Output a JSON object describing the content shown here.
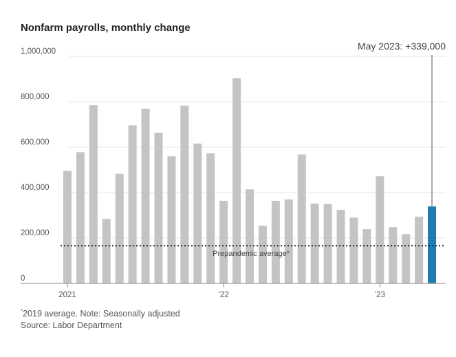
{
  "chart_data": {
    "type": "bar",
    "title": "Nonfarm payrolls, monthly change",
    "ylim": [
      0,
      1000000
    ],
    "yticks": [
      {
        "value": 0,
        "label": "0"
      },
      {
        "value": 200000,
        "label": "200,000"
      },
      {
        "value": 400000,
        "label": "400,000"
      },
      {
        "value": 600000,
        "label": "600,000"
      },
      {
        "value": 800000,
        "label": "800,000"
      },
      {
        "value": 1000000,
        "label": "1,000,000"
      }
    ],
    "categories": [
      "Jan 2021",
      "Feb 2021",
      "Mar 2021",
      "Apr 2021",
      "May 2021",
      "Jun 2021",
      "Jul 2021",
      "Aug 2021",
      "Sep 2021",
      "Oct 2021",
      "Nov 2021",
      "Dec 2021",
      "Jan 2022",
      "Feb 2022",
      "Mar 2022",
      "Apr 2022",
      "May 2022",
      "Jun 2022",
      "Jul 2022",
      "Aug 2022",
      "Sep 2022",
      "Oct 2022",
      "Nov 2022",
      "Dec 2022",
      "Jan 2023",
      "Feb 2023",
      "Mar 2023",
      "Apr 2023",
      "May 2023"
    ],
    "values": [
      496000,
      578000,
      785000,
      284000,
      483000,
      696000,
      770000,
      664000,
      560000,
      783000,
      616000,
      573000,
      364000,
      904000,
      414000,
      254000,
      364000,
      370000,
      568000,
      352000,
      350000,
      324000,
      290000,
      239000,
      472000,
      248000,
      217000,
      294000,
      339000
    ],
    "xtick_labels": [
      {
        "index": 0,
        "label": "2021"
      },
      {
        "index": 12,
        "label": "’22"
      },
      {
        "index": 24,
        "label": "’23"
      }
    ],
    "highlight_index": 28,
    "annotation": "May 2023: +339,000",
    "reference_line": {
      "value": 166000,
      "label": "Prepandemic average*"
    },
    "colors": {
      "bar": "#c4c4c4",
      "highlight": "#1f7bb5",
      "grid": "#e6e6e6",
      "axis": "#888888",
      "annotation_line": "#555555"
    }
  },
  "notes": {
    "footnote_mark": "*",
    "footnote_text": "2019 average. Note: Seasonally adjusted",
    "source": "Source: Labor Department"
  }
}
